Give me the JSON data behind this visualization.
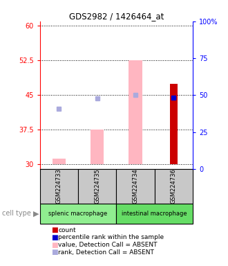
{
  "title": "GDS2982 / 1426464_at",
  "samples": [
    "GSM224733",
    "GSM224735",
    "GSM224734",
    "GSM224736"
  ],
  "ylim_left": [
    29,
    61
  ],
  "ylim_right": [
    0,
    100
  ],
  "yticks_left": [
    30,
    37.5,
    45,
    52.5,
    60
  ],
  "yticks_right": [
    0,
    25,
    50,
    75,
    100
  ],
  "ytick_labels_right": [
    "0",
    "25",
    "50",
    "75",
    "100%"
  ],
  "absent_value_bars": [
    31.2,
    37.5,
    52.5,
    null
  ],
  "absent_rank_squares": [
    42.0,
    44.3,
    45.0,
    null
  ],
  "present_value_bars": [
    null,
    null,
    null,
    47.5
  ],
  "present_rank_squares": [
    null,
    null,
    null,
    44.5
  ],
  "bar_base": 30,
  "bar_width": 0.35,
  "absent_bar_color": "#FFB6C1",
  "present_bar_color": "#CC0000",
  "absent_rank_color": "#AAAADD",
  "present_rank_color": "#0000CC",
  "sample_box_color": "#C8C8C8",
  "group1_color": "#90EE90",
  "group2_color": "#66DD66",
  "legend_colors": [
    "#CC0000",
    "#0000CC",
    "#FFB6C1",
    "#AAAADD"
  ],
  "legend_labels": [
    "count",
    "percentile rank within the sample",
    "value, Detection Call = ABSENT",
    "rank, Detection Call = ABSENT"
  ]
}
